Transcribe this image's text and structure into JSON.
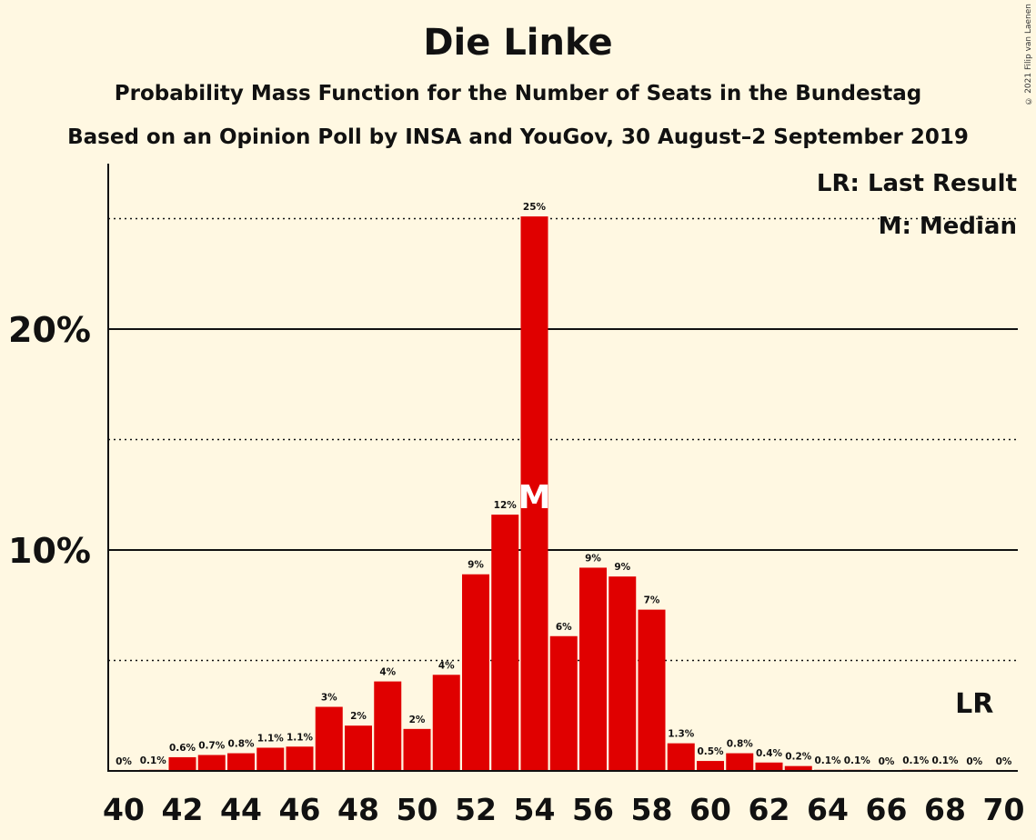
{
  "chart_data": {
    "type": "bar",
    "title": "Die Linke",
    "subtitle": "Probability Mass Function for the Number of Seats in the Bundestag",
    "subtitle2": "Based on an Opinion Poll by INSA and YouGov, 30 August–2 September 2019",
    "copyright": "© 2021 Filip van Laenen",
    "legend": [
      "LR: Last Result",
      "M: Median"
    ],
    "legend_position": "top-right",
    "x": [
      40,
      41,
      42,
      43,
      44,
      45,
      46,
      47,
      48,
      49,
      50,
      51,
      52,
      53,
      54,
      55,
      56,
      57,
      58,
      59,
      60,
      61,
      62,
      63,
      64,
      65,
      66,
      67,
      68,
      69,
      70
    ],
    "values": [
      0,
      0.1,
      0.6,
      0.7,
      0.8,
      1.1,
      1.1,
      3,
      2,
      4,
      2,
      4,
      9,
      12,
      25,
      6,
      9,
      9,
      7,
      1.3,
      0.5,
      0.8,
      0.4,
      0.2,
      0.1,
      0.1,
      0,
      0.1,
      0.1,
      0,
      0
    ],
    "plot_values": [
      0,
      0.05,
      0.62,
      0.72,
      0.8,
      1.05,
      1.1,
      2.9,
      2.05,
      4.05,
      1.9,
      4.35,
      8.9,
      11.6,
      25.1,
      6.1,
      9.2,
      8.8,
      7.3,
      1.25,
      0.45,
      0.8,
      0.38,
      0.22,
      0.05,
      0.05,
      0,
      0.05,
      0.05,
      0,
      0
    ],
    "labels": [
      "0%",
      "0.1%",
      "0.6%",
      "0.7%",
      "0.8%",
      "1.1%",
      "1.1%",
      "3%",
      "2%",
      "4%",
      "2%",
      "4%",
      "9%",
      "12%",
      "25%",
      "6%",
      "9%",
      "9%",
      "7%",
      "1.3%",
      "0.5%",
      "0.8%",
      "0.4%",
      "0.2%",
      "0.1%",
      "0.1%",
      "0%",
      "0.1%",
      "0.1%",
      "0%",
      "0%"
    ],
    "x_tick_labels": [
      "40",
      "42",
      "44",
      "46",
      "48",
      "50",
      "52",
      "54",
      "56",
      "58",
      "60",
      "62",
      "64",
      "66",
      "68",
      "70"
    ],
    "y_tick_labels": [
      "10%",
      "20%"
    ],
    "ylim": [
      0,
      27.4
    ],
    "grid_solid": [
      10,
      20
    ],
    "grid_dotted": [
      5,
      15,
      25
    ],
    "median": 54,
    "median_label": "M",
    "last_result": 69,
    "last_result_label": "LR",
    "bar_color": "#E00000",
    "background": "#FFF8E2"
  }
}
